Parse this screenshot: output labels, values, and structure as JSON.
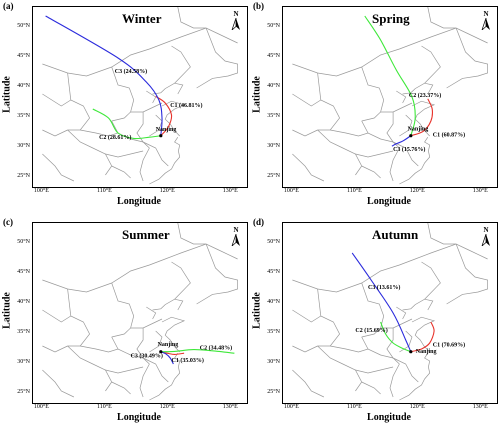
{
  "figure": {
    "station": "Nanjing",
    "xlabel": "Longitude",
    "ylabel": "Latitude",
    "north_label": "N",
    "x_ticks": [
      "100°E",
      "110°E",
      "120°E",
      "130°E"
    ],
    "y_ticks": [
      "50°N",
      "45°N",
      "40°N",
      "35°N",
      "30°N",
      "25°N"
    ],
    "colors": {
      "C1": "#e8322a",
      "C2": "#3ee83a",
      "C3": "#2b2bdc",
      "boundary": "#9a9a9a"
    }
  },
  "panels": [
    {
      "letter": "(a)",
      "season": "Winter",
      "clusters": [
        {
          "id": "C1",
          "label": "C1 (46.81%)",
          "path": [
            [
              118.8,
              32.05
            ],
            [
              120.0,
              33.5
            ],
            [
              120.5,
              35.5
            ],
            [
              119.5,
              37.5
            ],
            [
              118.0,
              38.6
            ]
          ]
        },
        {
          "id": "C2",
          "label": "C2 (28.61%)",
          "path": [
            [
              118.8,
              32.05
            ],
            [
              117.0,
              31.8
            ],
            [
              114.5,
              31.6
            ],
            [
              112.0,
              32.5
            ],
            [
              110.5,
              35.0
            ],
            [
              108.0,
              36.5
            ]
          ]
        },
        {
          "id": "C3",
          "label": "C3 (24.58%)",
          "path": [
            [
              118.8,
              32.05
            ],
            [
              119.0,
              35.0
            ],
            [
              118.5,
              38.0
            ],
            [
              116.5,
              41.0
            ],
            [
              112.0,
              45.0
            ],
            [
              100.5,
              52.0
            ]
          ]
        }
      ],
      "labels_pos": {
        "C1": [
          120.3,
          36.8
        ],
        "C2": [
          109.0,
          31.5
        ],
        "C3": [
          111.5,
          42.5
        ],
        "station": [
          118.0,
          32.8
        ]
      }
    },
    {
      "letter": "(b)",
      "season": "Spring",
      "clusters": [
        {
          "id": "C1",
          "label": "C1 (60.87%)",
          "path": [
            [
              118.8,
              32.05
            ],
            [
              120.8,
              32.8
            ],
            [
              122.0,
              34.5
            ],
            [
              122.2,
              36.5
            ],
            [
              121.5,
              38.2
            ]
          ]
        },
        {
          "id": "C2",
          "label": "C2 (23.37%)",
          "path": [
            [
              118.8,
              32.05
            ],
            [
              119.5,
              35.0
            ],
            [
              119.0,
              38.5
            ],
            [
              116.5,
              43.0
            ],
            [
              114.0,
              48.0
            ],
            [
              111.5,
              52.0
            ]
          ]
        },
        {
          "id": "C3",
          "label": "C3 (15.76%)",
          "path": [
            [
              118.8,
              32.05
            ],
            [
              117.6,
              31.2
            ],
            [
              116.5,
              30.7
            ],
            [
              115.8,
              30.3
            ]
          ]
        }
      ],
      "labels_pos": {
        "C1": [
          122.3,
          31.9
        ],
        "C2": [
          118.5,
          38.5
        ],
        "C3": [
          116.0,
          29.5
        ],
        "station": [
          118.3,
          32.9
        ]
      }
    },
    {
      "letter": "(c)",
      "season": "Summer",
      "clusters": [
        {
          "id": "C1",
          "label": "C1 (35.03%)",
          "path": [
            [
              118.8,
              32.05
            ],
            [
              119.8,
              31.8
            ],
            [
              121.0,
              31.6
            ],
            [
              122.5,
              31.8
            ]
          ]
        },
        {
          "id": "C2",
          "label": "C2 (34.48%)",
          "path": [
            [
              118.8,
              32.05
            ],
            [
              121.0,
              32.1
            ],
            [
              124.0,
              32.4
            ],
            [
              127.0,
              32.2
            ],
            [
              130.5,
              31.8
            ]
          ]
        },
        {
          "id": "C3",
          "label": "C3 (30.49%)",
          "path": [
            [
              118.8,
              32.05
            ],
            [
              119.6,
              31.7
            ],
            [
              120.3,
              31.0
            ],
            [
              120.8,
              30.0
            ]
          ]
        }
      ],
      "labels_pos": {
        "C1": [
          120.5,
          30.3
        ],
        "C2": [
          125.0,
          32.4
        ],
        "C3": [
          114.0,
          31.1
        ],
        "station": [
          118.3,
          33.0
        ]
      }
    },
    {
      "letter": "(d)",
      "season": "Autumn",
      "clusters": [
        {
          "id": "C1",
          "label": "C1 (70.69%)",
          "path": [
            [
              118.8,
              32.05
            ],
            [
              120.5,
              32.5
            ],
            [
              121.8,
              33.5
            ],
            [
              122.5,
              35.5
            ],
            [
              122.0,
              37.0
            ]
          ]
        },
        {
          "id": "C2",
          "label": "C2 (15.69%)",
          "path": [
            [
              118.8,
              32.05
            ],
            [
              117.5,
              32.6
            ],
            [
              116.0,
              33.5
            ],
            [
              114.8,
              35.0
            ],
            [
              114.0,
              37.0
            ]
          ]
        },
        {
          "id": "C3",
          "label": "C3 (13.61%)",
          "path": [
            [
              118.8,
              32.05
            ],
            [
              118.0,
              34.0
            ],
            [
              116.0,
              38.5
            ],
            [
              112.5,
              44.0
            ],
            [
              109.5,
              48.5
            ]
          ]
        }
      ],
      "labels_pos": {
        "C1": [
          122.3,
          32.9
        ],
        "C2": [
          110.0,
          35.3
        ],
        "C3": [
          112.0,
          42.5
        ],
        "station": [
          119.6,
          31.8
        ]
      }
    }
  ]
}
